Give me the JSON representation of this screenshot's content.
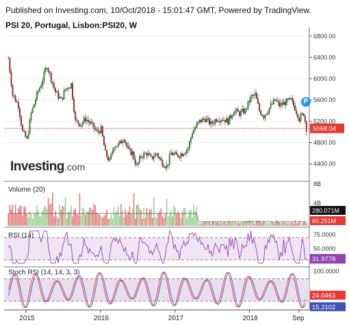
{
  "header": {
    "line1": "Published on Investing.com, 10/Oct/2018 - 15:01:47 GMT, Powered by TradingView.",
    "line2": "PSI 20, Portugal, Lisbon:PSI20, W"
  },
  "logo": {
    "brand": "Investing",
    "suffix": ".com"
  },
  "marker_label": "P",
  "chart_data": {
    "type": "candlestick",
    "symbol": "PSI 20, Portugal, Lisbon:PSI20, W",
    "x_labels": [
      "2015",
      "2016",
      "2017",
      "2018",
      "Sep"
    ],
    "price_panel": {
      "ylim": [
        4100,
        6900
      ],
      "y_ticks": [
        4400,
        4800,
        5200,
        5600,
        6000,
        6400,
        6800
      ],
      "y_tick_labels": [
        "4400.00",
        "4800.00",
        "5200.00",
        "5600.00",
        "6000.00",
        "6400.00",
        "6800.00"
      ],
      "last_price": 5068.04,
      "last_price_label": "5068.04",
      "close_path": [
        [
          "2014-10-06",
          6380
        ],
        [
          "2014-10-27",
          5700
        ],
        [
          "2014-11-24",
          5500
        ],
        [
          "2014-12-15",
          5000
        ],
        [
          "2015-01-05",
          4850
        ],
        [
          "2015-01-26",
          5350
        ],
        [
          "2015-02-23",
          5700
        ],
        [
          "2015-03-16",
          5900
        ],
        [
          "2015-04-13",
          6250
        ],
        [
          "2015-05-04",
          6000
        ],
        [
          "2015-05-25",
          5750
        ],
        [
          "2015-06-22",
          5600
        ],
        [
          "2015-07-13",
          5800
        ],
        [
          "2015-08-10",
          5900
        ],
        [
          "2015-08-31",
          5200
        ],
        [
          "2015-09-28",
          5150
        ],
        [
          "2015-10-19",
          5250
        ],
        [
          "2015-11-16",
          5150
        ],
        [
          "2015-12-14",
          5000
        ],
        [
          "2016-01-04",
          5050
        ],
        [
          "2016-01-25",
          4600
        ],
        [
          "2016-02-15",
          4450
        ],
        [
          "2016-03-07",
          4750
        ],
        [
          "2016-03-28",
          4750
        ],
        [
          "2016-04-25",
          4900
        ],
        [
          "2016-05-16",
          4650
        ],
        [
          "2016-06-06",
          4600
        ],
        [
          "2016-06-27",
          4350
        ],
        [
          "2016-07-18",
          4550
        ],
        [
          "2016-08-15",
          4600
        ],
        [
          "2016-09-05",
          4500
        ],
        [
          "2016-10-03",
          4600
        ],
        [
          "2016-10-24",
          4450
        ],
        [
          "2016-11-21",
          4350
        ],
        [
          "2016-12-12",
          4600
        ],
        [
          "2017-01-09",
          4550
        ],
        [
          "2017-02-06",
          4600
        ],
        [
          "2017-03-06",
          4700
        ],
        [
          "2017-03-27",
          5000
        ],
        [
          "2017-05-01",
          5200
        ],
        [
          "2017-05-29",
          5250
        ],
        [
          "2017-06-26",
          5150
        ],
        [
          "2017-07-24",
          5250
        ],
        [
          "2017-08-21",
          5250
        ],
        [
          "2017-09-18",
          5200
        ],
        [
          "2017-10-16",
          5400
        ],
        [
          "2017-11-13",
          5350
        ],
        [
          "2017-12-11",
          5400
        ],
        [
          "2018-01-08",
          5650
        ],
        [
          "2018-01-29",
          5700
        ],
        [
          "2018-02-19",
          5400
        ],
        [
          "2018-03-12",
          5300
        ],
        [
          "2018-04-09",
          5450
        ],
        [
          "2018-05-07",
          5600
        ],
        [
          "2018-05-28",
          5500
        ],
        [
          "2018-06-25",
          5550
        ],
        [
          "2018-07-23",
          5600
        ],
        [
          "2018-08-13",
          5450
        ],
        [
          "2018-09-03",
          5250
        ],
        [
          "2018-09-24",
          5350
        ],
        [
          "2018-10-08",
          5068
        ]
      ]
    },
    "volume_panel": {
      "title": "Volume (20)",
      "y_ticks": [
        "4B",
        "8B"
      ],
      "value_labels": [
        "280.071M",
        "60.251M"
      ]
    },
    "rsi_panel": {
      "title": "RSI (14)",
      "ylim": [
        20,
        85
      ],
      "y_ticks": [
        50,
        75
      ],
      "y_tick_labels": [
        "50.0000",
        "75.0000"
      ],
      "band": [
        30,
        70
      ],
      "last": "31.9778",
      "color": "#8e44ad"
    },
    "stoch_panel": {
      "title": "Stoch RSI (14, 14, 3, 3)",
      "ylim": [
        0,
        110
      ],
      "y_ticks": [
        100
      ],
      "y_tick_labels": [
        "100.0000"
      ],
      "band": [
        20,
        80
      ],
      "last_k": "24.0463",
      "last_d": "15.2102",
      "k_color": "#e53935",
      "d_color": "#3f51b5"
    },
    "colors": {
      "up": "#26a024",
      "down": "#b71c1c",
      "price_line": "#e53935"
    }
  }
}
